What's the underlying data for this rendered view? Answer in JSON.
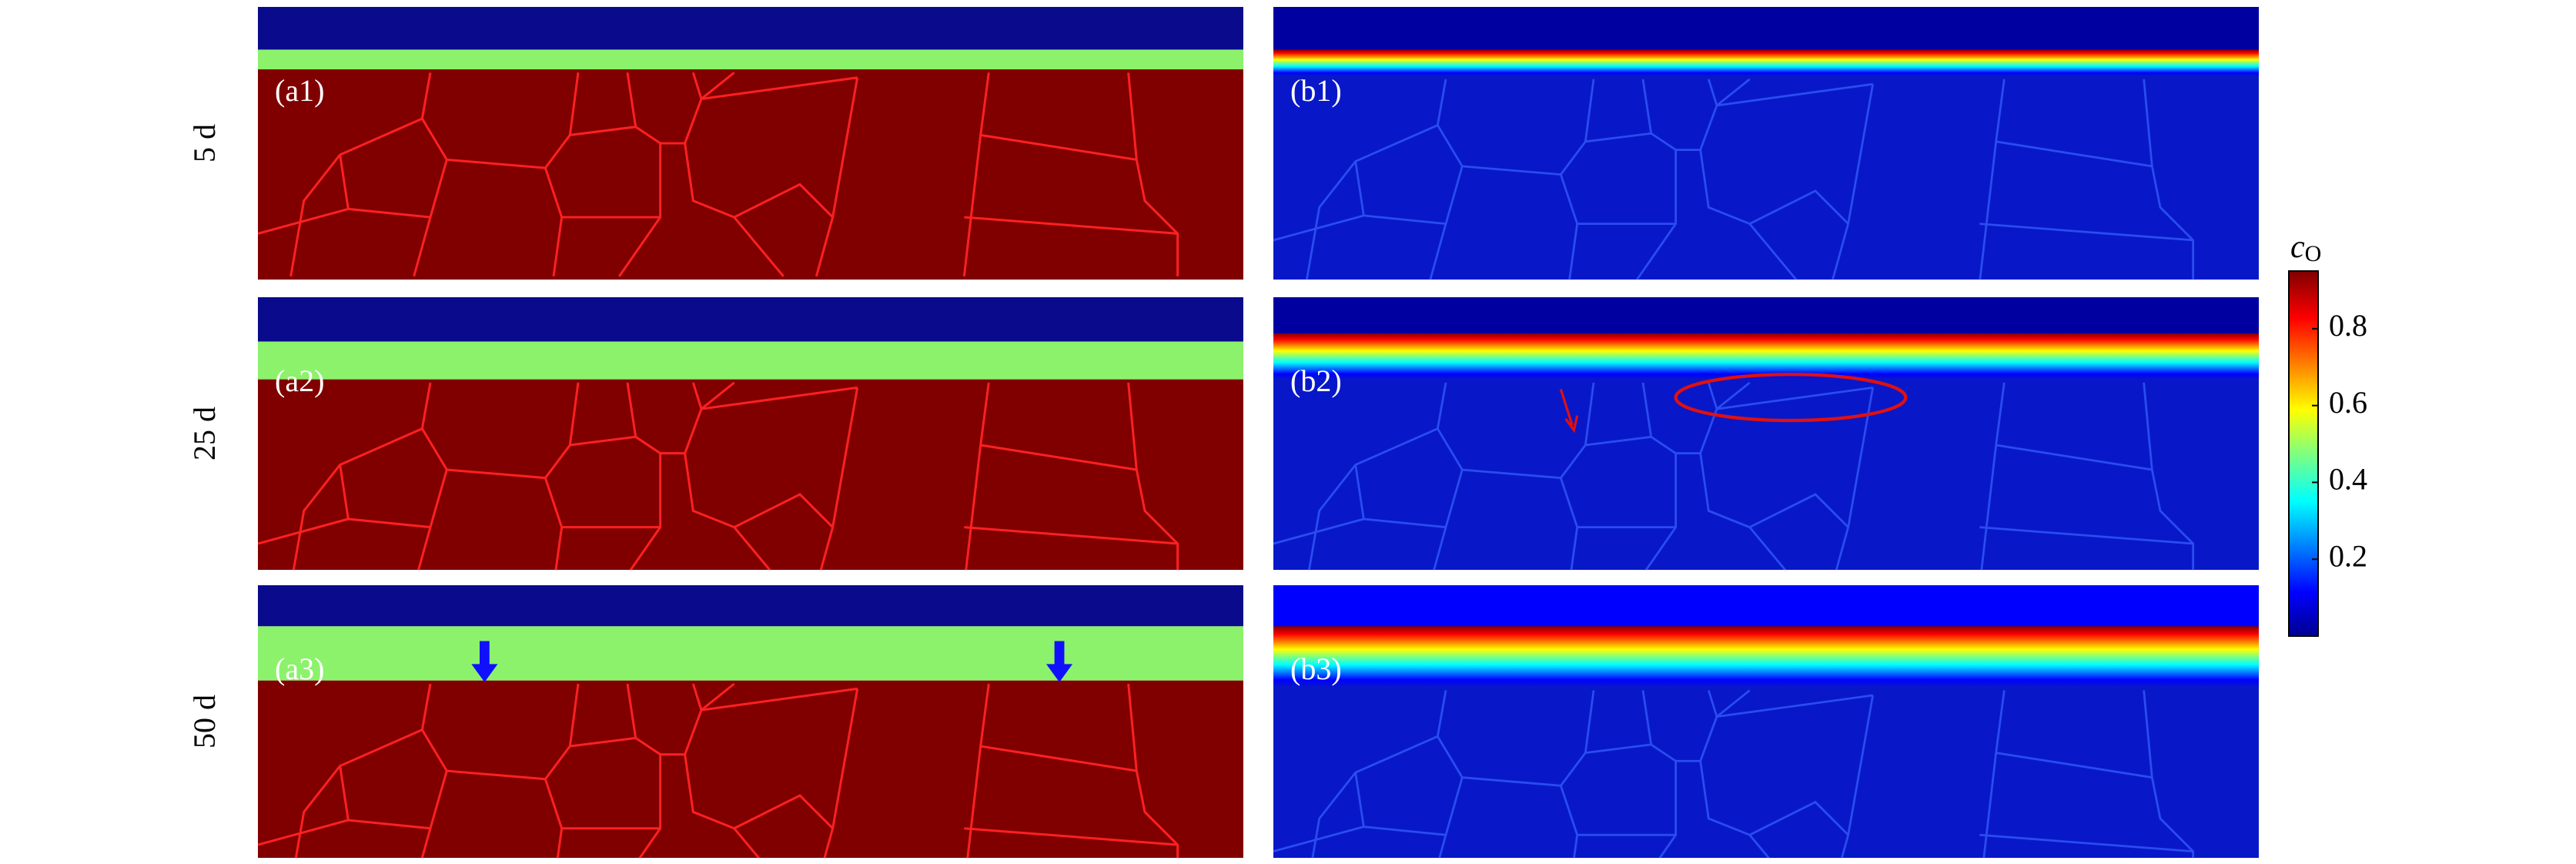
{
  "rows": [
    {
      "label": "5 d"
    },
    {
      "label": "25 d"
    },
    {
      "label": "50 d"
    }
  ],
  "panels": [
    {
      "label": "(a1)"
    },
    {
      "label": "(b1)"
    },
    {
      "label": "(a2)"
    },
    {
      "label": "(b2)"
    },
    {
      "label": "(a3)"
    },
    {
      "label": "(b3)"
    }
  ],
  "colorbar": {
    "symbol": "c",
    "subscript": "O",
    "lim": [
      0,
      0.95
    ],
    "ticks": [
      0.2,
      0.4,
      0.6,
      0.8
    ]
  }
}
